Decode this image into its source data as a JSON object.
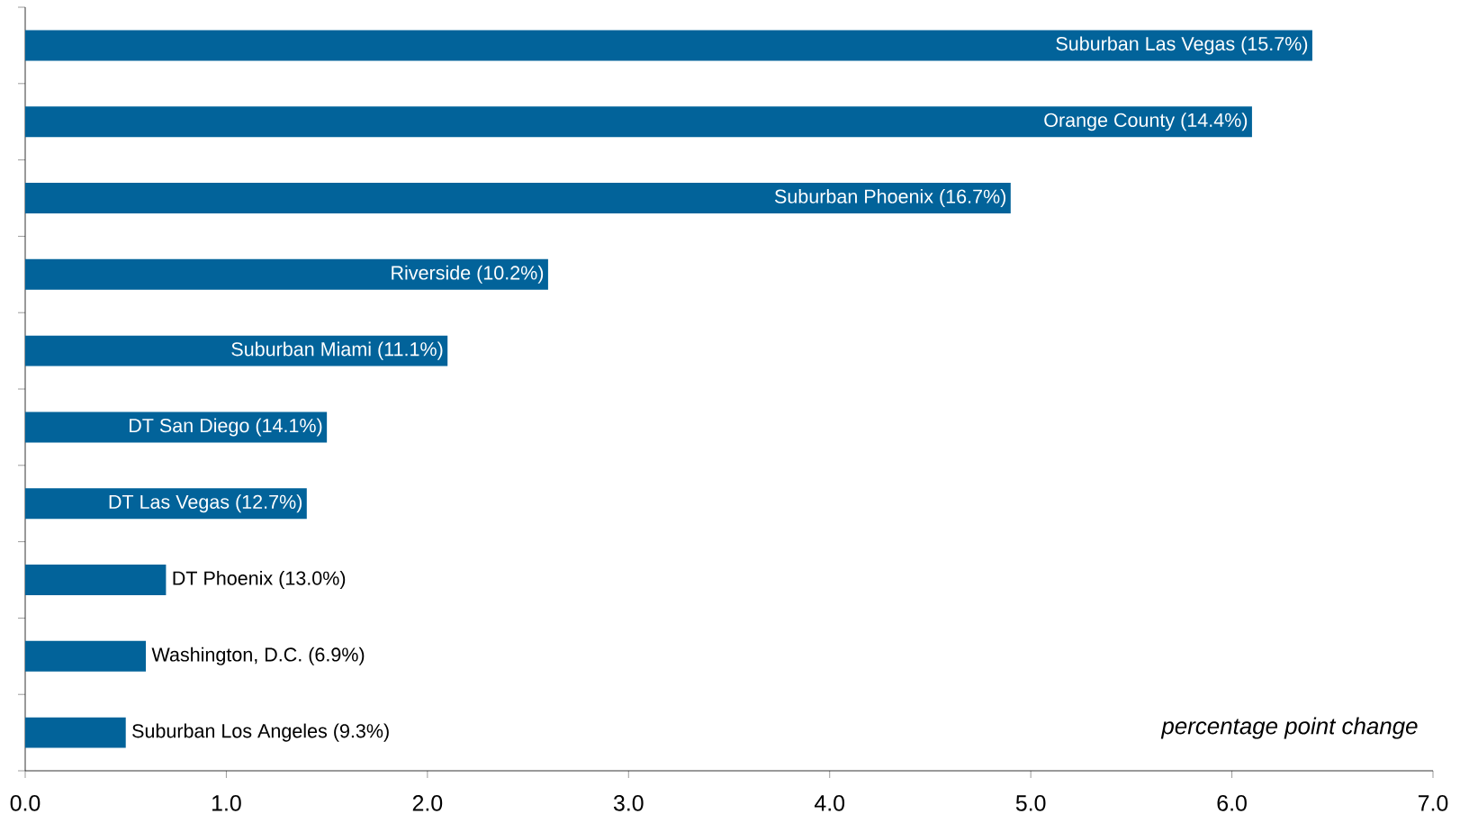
{
  "chart_data": {
    "type": "bar",
    "orientation": "horizontal",
    "color": "#02639a",
    "categories": [
      "Suburban Las Vegas (15.7%)",
      "Orange County (14.4%)",
      "Suburban Phoenix (16.7%)",
      "Riverside (10.2%)",
      "Suburban Miami (11.1%)",
      "DT San Diego (14.1%)",
      "DT Las Vegas (12.7%)",
      "DT Phoenix (13.0%)",
      "Washington, D.C. (6.9%)",
      "Suburban Los Angeles (9.3%)"
    ],
    "values": [
      6.4,
      6.1,
      4.9,
      2.6,
      2.1,
      1.5,
      1.4,
      0.7,
      0.6,
      0.5
    ],
    "xlim": [
      0,
      7
    ],
    "xticks": [
      {
        "value": 0,
        "label": "0.0"
      },
      {
        "value": 1,
        "label": "1.0"
      },
      {
        "value": 2,
        "label": "2.0"
      },
      {
        "value": 3,
        "label": "3.0"
      },
      {
        "value": 4,
        "label": "4.0"
      },
      {
        "value": 5,
        "label": "5.0"
      },
      {
        "value": 6,
        "label": "6.0"
      },
      {
        "value": 7,
        "label": "7.0"
      }
    ],
    "annotations": [
      "*percentage point change*"
    ]
  }
}
